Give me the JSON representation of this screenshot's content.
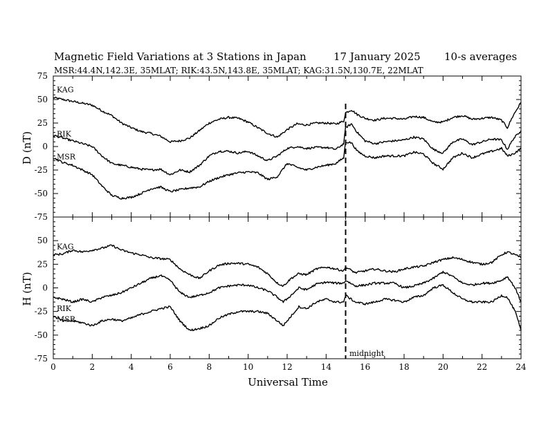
{
  "header": {
    "title": "Magnetic Field Variations at 3 Stations in Japan",
    "date": "17 January 2025",
    "averaging": "10-s averages",
    "stations_line": "MSR:44.4N,142.3E, 35MLAT;  RIK:43.5N,143.8E, 35MLAT;  KAG:31.5N,130.7E, 22MLAT"
  },
  "chart_data": [
    {
      "type": "line",
      "panel": "top",
      "ylabel": "D (nT)",
      "xlabel": "",
      "xlim": [
        0,
        24
      ],
      "ylim": [
        -75,
        75
      ],
      "yticks": [
        75,
        50,
        25,
        0,
        -25,
        -50,
        -75
      ],
      "x_minor_step": 1,
      "y_minor_step": 5,
      "series": [
        {
          "name": "KAG",
          "x": [
            0,
            0.5,
            1,
            1.5,
            2,
            2.5,
            3,
            3.5,
            4,
            4.5,
            5,
            5.5,
            6,
            6.5,
            7,
            7.5,
            8,
            8.5,
            9,
            9.5,
            10,
            10.5,
            11,
            11.5,
            12,
            12.5,
            13,
            13.5,
            14,
            14.5,
            14.9,
            15,
            15.3,
            15.6,
            16,
            16.5,
            17,
            17.5,
            18,
            18.5,
            19,
            19.5,
            20,
            20.5,
            21,
            21.5,
            22,
            22.5,
            23,
            23.3,
            23.6,
            24
          ],
          "values": [
            52,
            50,
            48,
            46,
            44,
            38,
            33,
            25,
            20,
            16,
            14,
            11,
            5,
            6,
            9,
            17,
            25,
            29,
            31,
            30,
            26,
            20,
            14,
            10,
            18,
            24,
            23,
            25,
            25,
            24,
            27,
            36,
            39,
            34,
            30,
            28,
            30,
            30,
            29,
            32,
            31,
            26,
            26,
            31,
            33,
            29,
            30,
            31,
            28,
            20,
            33,
            47
          ]
        },
        {
          "name": "RIK",
          "x": [
            0,
            0.5,
            1,
            1.5,
            2,
            2.5,
            3,
            3.5,
            4,
            4.5,
            5,
            5.5,
            6,
            6.5,
            7,
            7.5,
            8,
            8.5,
            9,
            9.5,
            10,
            10.5,
            11,
            11.5,
            12,
            12.5,
            13,
            13.5,
            14,
            14.5,
            14.9,
            15,
            15.3,
            15.6,
            16,
            16.5,
            17,
            17.5,
            18,
            18.5,
            19,
            19.5,
            20,
            20.5,
            21,
            21.5,
            22,
            22.5,
            23,
            23.3,
            23.6,
            24
          ],
          "values": [
            12,
            9,
            6,
            3,
            0,
            -10,
            -18,
            -20,
            -22,
            -24,
            -25,
            -24,
            -30,
            -25,
            -27,
            -20,
            -10,
            -5,
            -5,
            -7,
            -5,
            -10,
            -15,
            -10,
            -2,
            0,
            -2,
            -1,
            -1,
            -3,
            3,
            20,
            24,
            15,
            6,
            3,
            5,
            6,
            7,
            10,
            8,
            -3,
            -7,
            5,
            8,
            2,
            5,
            8,
            7,
            -3,
            8,
            17
          ]
        },
        {
          "name": "MSR",
          "x": [
            0,
            0.5,
            1,
            1.5,
            2,
            2.5,
            3,
            3.5,
            4,
            4.5,
            5,
            5.5,
            6,
            6.5,
            7,
            7.5,
            8,
            8.5,
            9,
            9.5,
            10,
            10.5,
            11,
            11.5,
            12,
            12.5,
            13,
            13.5,
            14,
            14.5,
            14.9,
            15,
            15.3,
            15.6,
            16,
            16.5,
            17,
            17.5,
            18,
            18.5,
            19,
            19.5,
            20,
            20.5,
            21,
            21.5,
            22,
            22.5,
            23,
            23.3,
            23.6,
            24
          ],
          "values": [
            -12,
            -17,
            -20,
            -25,
            -30,
            -42,
            -52,
            -55,
            -54,
            -50,
            -45,
            -43,
            -48,
            -46,
            -44,
            -43,
            -37,
            -33,
            -30,
            -28,
            -27,
            -28,
            -35,
            -32,
            -18,
            -22,
            -25,
            -22,
            -20,
            -18,
            -12,
            5,
            4,
            -5,
            -10,
            -12,
            -10,
            -10,
            -10,
            -6,
            -8,
            -18,
            -24,
            -12,
            -7,
            -12,
            -8,
            -5,
            -2,
            -10,
            -8,
            -2
          ]
        }
      ]
    },
    {
      "type": "line",
      "panel": "bottom",
      "ylabel": "H (nT)",
      "xlabel": "Universal Time",
      "xlim": [
        0,
        24
      ],
      "ylim": [
        -75,
        75
      ],
      "xticks": [
        0,
        2,
        4,
        6,
        8,
        10,
        12,
        14,
        16,
        18,
        20,
        22,
        24
      ],
      "yticks": [
        50,
        25,
        0,
        -25,
        -50,
        -75
      ],
      "x_minor_step": 1,
      "y_minor_step": 5,
      "series": [
        {
          "name": "KAG",
          "x": [
            0,
            0.5,
            1,
            1.5,
            2,
            2.5,
            3,
            3.5,
            4,
            4.5,
            5,
            5.5,
            6,
            6.5,
            7,
            7.5,
            8,
            8.5,
            9,
            9.5,
            10,
            10.5,
            11,
            11.5,
            11.8,
            12.2,
            12.6,
            13,
            13.5,
            14,
            14.5,
            14.9,
            15,
            15.5,
            16,
            16.5,
            17,
            17.5,
            18,
            18.5,
            19,
            19.5,
            20,
            20.5,
            21,
            21.5,
            22,
            22.5,
            23,
            23.3,
            23.7,
            24
          ],
          "values": [
            35,
            36,
            40,
            38,
            40,
            42,
            45,
            40,
            37,
            35,
            32,
            31,
            30,
            20,
            14,
            10,
            18,
            24,
            26,
            26,
            25,
            22,
            15,
            5,
            2,
            10,
            15,
            14,
            20,
            22,
            20,
            18,
            22,
            16,
            18,
            20,
            18,
            17,
            20,
            22,
            23,
            27,
            30,
            32,
            30,
            27,
            25,
            27,
            35,
            38,
            35,
            32
          ]
        },
        {
          "name": "RIK",
          "x": [
            0,
            0.5,
            1,
            1.5,
            2,
            2.5,
            3,
            3.5,
            4,
            4.5,
            5,
            5.5,
            6,
            6.5,
            7,
            7.5,
            8,
            8.5,
            9,
            9.5,
            10,
            10.5,
            11,
            11.5,
            11.8,
            12.2,
            12.6,
            13,
            13.5,
            14,
            14.5,
            14.9,
            15,
            15.5,
            16,
            16.5,
            17,
            17.5,
            18,
            18.5,
            19,
            19.5,
            20,
            20.5,
            21,
            21.5,
            22,
            22.5,
            23,
            23.3,
            23.7,
            24
          ],
          "values": [
            -10,
            -12,
            -15,
            -12,
            -15,
            -10,
            -8,
            -5,
            0,
            5,
            10,
            13,
            8,
            -5,
            -10,
            -8,
            -5,
            0,
            2,
            3,
            3,
            0,
            -3,
            -10,
            -15,
            -8,
            0,
            -2,
            4,
            6,
            5,
            5,
            8,
            2,
            3,
            5,
            5,
            5,
            0,
            2,
            5,
            10,
            17,
            12,
            5,
            3,
            5,
            5,
            8,
            12,
            0,
            -15
          ]
        },
        {
          "name": "MSR",
          "x": [
            0,
            0.5,
            1,
            1.5,
            2,
            2.5,
            3,
            3.5,
            4,
            4.5,
            5,
            5.5,
            6,
            6.5,
            7,
            7.5,
            8,
            8.5,
            9,
            9.5,
            10,
            10.5,
            11,
            11.5,
            11.8,
            12.2,
            12.6,
            13,
            13.5,
            14,
            14.5,
            14.9,
            15,
            15.5,
            16,
            16.5,
            17,
            17.5,
            18,
            18.5,
            19,
            19.5,
            20,
            20.5,
            21,
            21.5,
            22,
            22.5,
            23,
            23.3,
            23.7,
            24
          ],
          "values": [
            -30,
            -35,
            -35,
            -37,
            -40,
            -35,
            -33,
            -35,
            -32,
            -28,
            -25,
            -22,
            -20,
            -35,
            -45,
            -43,
            -40,
            -32,
            -28,
            -25,
            -25,
            -25,
            -27,
            -35,
            -40,
            -30,
            -20,
            -22,
            -15,
            -12,
            -15,
            -15,
            -8,
            -15,
            -17,
            -15,
            -12,
            -13,
            -15,
            -10,
            -8,
            0,
            3,
            -5,
            -12,
            -15,
            -15,
            -15,
            -8,
            -10,
            -25,
            -45
          ]
        }
      ]
    }
  ],
  "marker": {
    "x": 15,
    "label": "midnight"
  },
  "style": {
    "line_color": "#000000",
    "background": "#ffffff"
  }
}
